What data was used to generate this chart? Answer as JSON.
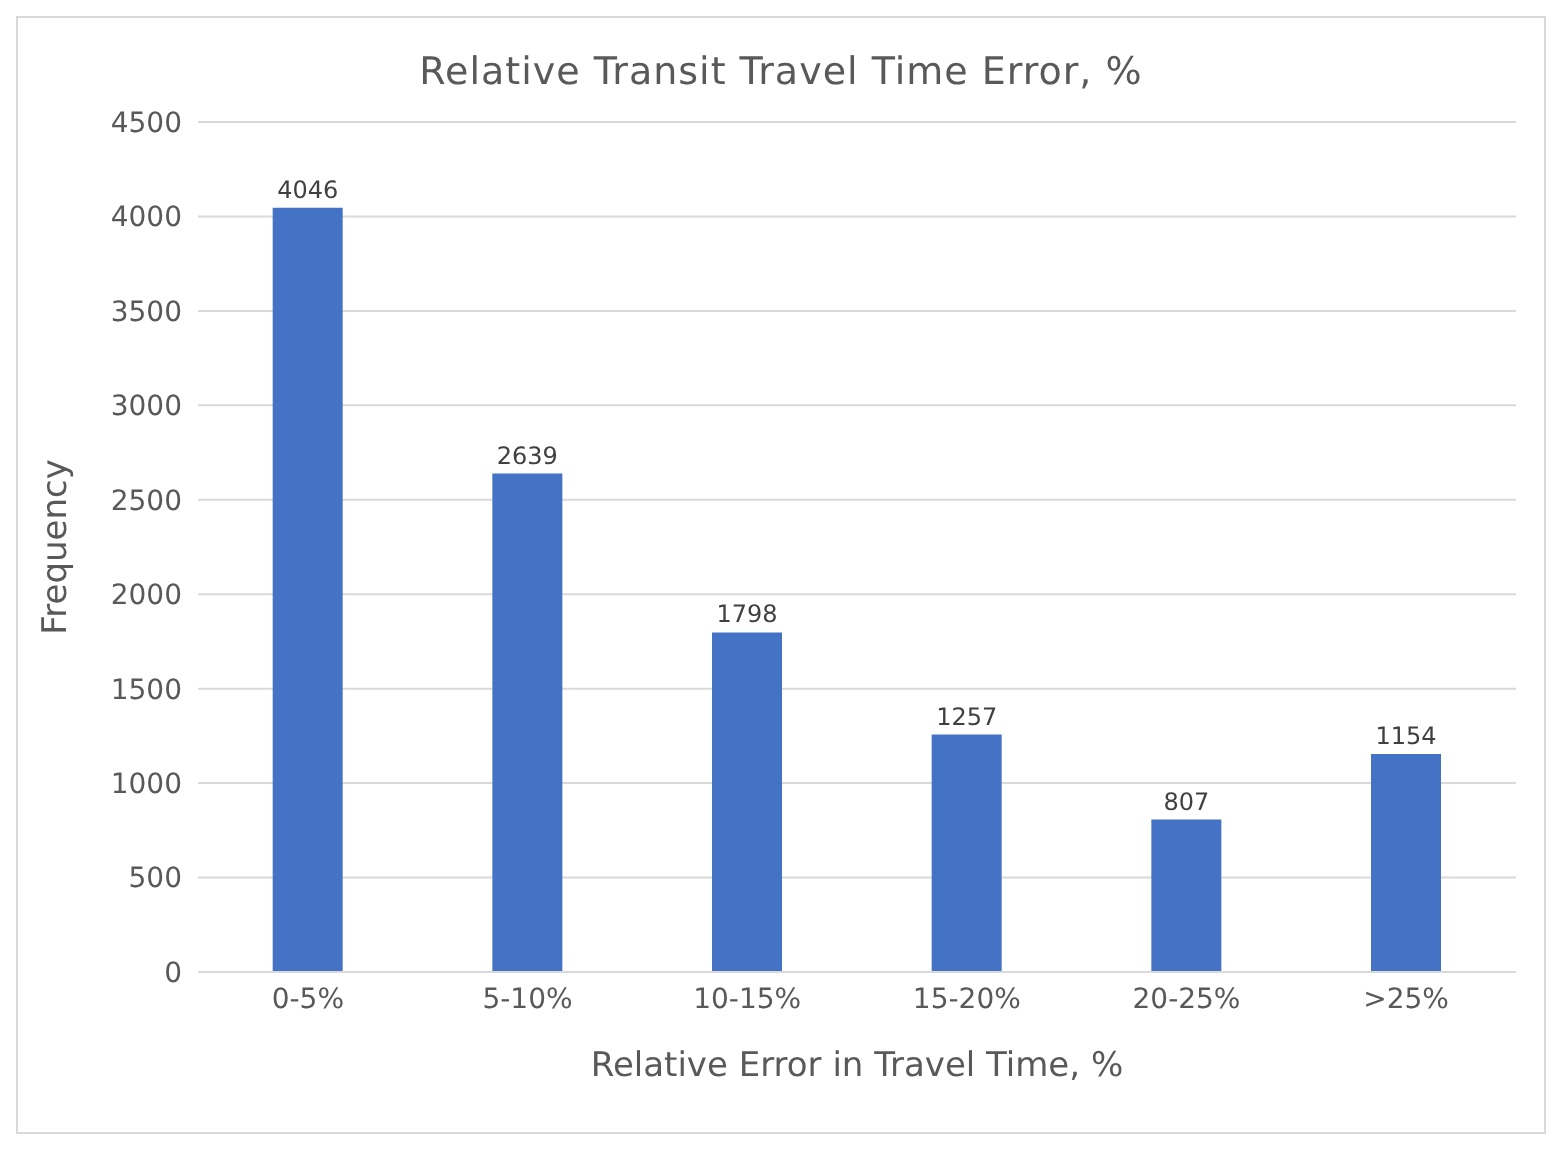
{
  "chart_data": {
    "type": "bar",
    "title": "Relative Transit Travel Time Error, %",
    "xlabel": "Relative Error in Travel Time, %",
    "ylabel": "Frequency",
    "categories": [
      "0-5%",
      "5-10%",
      "10-15%",
      "15-20%",
      "20-25%",
      ">25%"
    ],
    "values": [
      4046,
      2639,
      1798,
      1257,
      807,
      1154
    ],
    "color": "#4472c4",
    "ylim": [
      0,
      4500
    ],
    "yticks": [
      0,
      500,
      1000,
      1500,
      2000,
      2500,
      3000,
      3500,
      4000,
      4500
    ],
    "grid": "y",
    "data_labels": true
  }
}
